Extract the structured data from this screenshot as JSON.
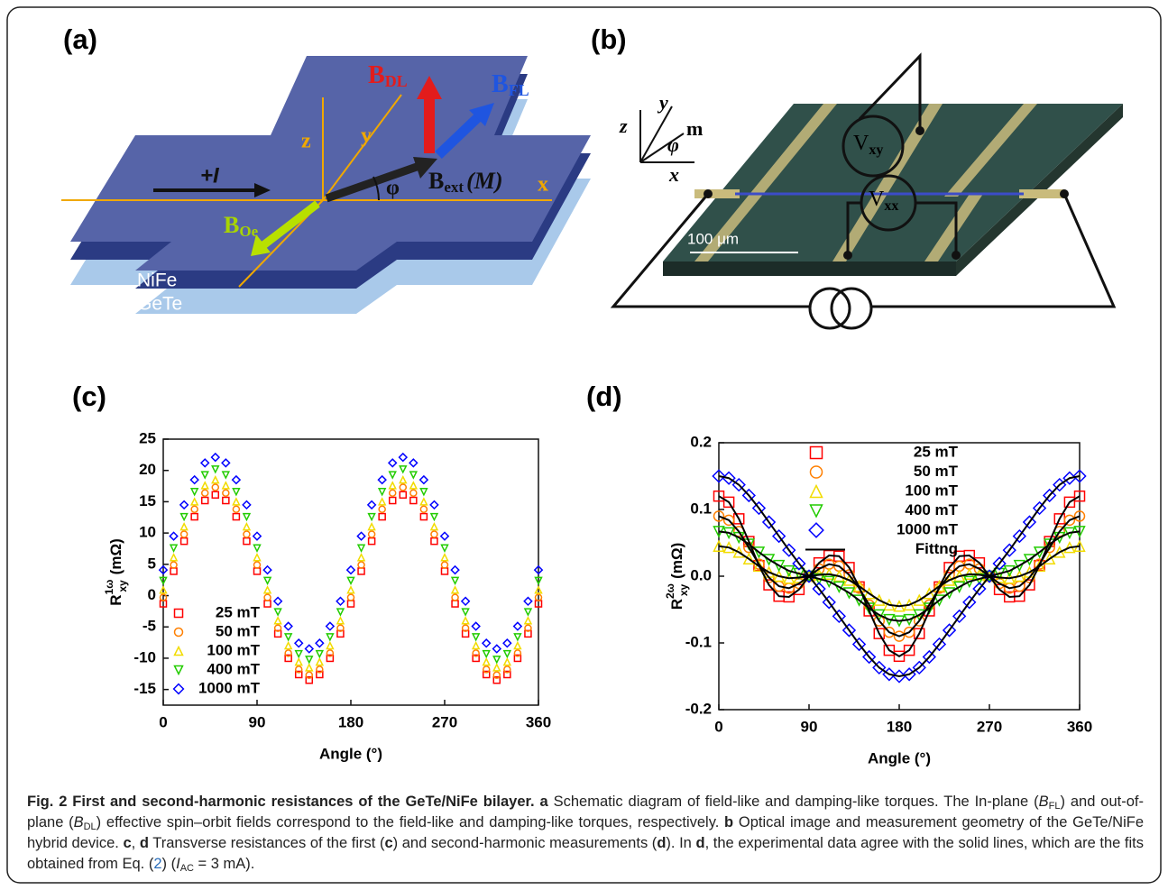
{
  "panels": {
    "a": {
      "label": "(a)",
      "B_DL": {
        "base": "B",
        "sub": "DL"
      },
      "B_FL": {
        "base": "B",
        "sub": "FL"
      },
      "z": "z",
      "y": "y",
      "x": "x",
      "current": "+I",
      "phi": "φ",
      "B_ext": {
        "base": "B",
        "sub": "ext",
        "rest": "(M)"
      },
      "B_Oe": {
        "base": "B",
        "sub": "Oe"
      },
      "layer_top": "NiFe",
      "layer_bottom": "GeTe"
    },
    "b": {
      "label": "(b)",
      "z": "z",
      "y": "y",
      "x": "x",
      "m": "m",
      "phi": "φ",
      "V_xy": {
        "base": "V",
        "sub": "xy"
      },
      "V_xx": {
        "base": "V",
        "sub": "xx"
      },
      "scale_bar": "100 μm"
    }
  },
  "chart_data": [
    {
      "type": "scatter",
      "title": "(c)",
      "xlabel": "Angle (°)",
      "ylabel": {
        "base": "R",
        "sup": "1ω",
        "sub": "xy",
        "unit": "(mΩ)"
      },
      "x": [
        0,
        10,
        20,
        30,
        40,
        50,
        60,
        70,
        80,
        90,
        100,
        110,
        120,
        130,
        140,
        150,
        160,
        170,
        180,
        190,
        200,
        210,
        220,
        230,
        240,
        250,
        260,
        270,
        280,
        290,
        300,
        310,
        320,
        330,
        340,
        350,
        360
      ],
      "xlim": [
        0,
        360
      ],
      "xticks": [
        0,
        90,
        180,
        270,
        360
      ],
      "ylim": [
        -17.5,
        25
      ],
      "yticks": [
        -15,
        -10,
        -5,
        0,
        5,
        10,
        15,
        20,
        25
      ],
      "legend": "lower left",
      "series": [
        {
          "name": "25 mT",
          "color": "#ff0000",
          "marker": "square",
          "values": [
            -1.3,
            3.9,
            8.7,
            12.6,
            15.2,
            16.1,
            15.2,
            12.6,
            8.7,
            3.9,
            -1.3,
            -6.1,
            -10,
            -12.6,
            -13.5,
            -12.6,
            -10,
            -6.1,
            -1.3,
            3.9,
            8.7,
            12.6,
            15.2,
            16.1,
            15.2,
            12.6,
            8.7,
            3.9,
            -1.3,
            -6.1,
            -10,
            -12.6,
            -13.5,
            -12.6,
            -10,
            -6.1,
            -1.3
          ]
        },
        {
          "name": "50 mT",
          "color": "#ff7f00",
          "marker": "circle",
          "values": [
            -0.3,
            4.9,
            9.8,
            13.8,
            16.4,
            17.3,
            16.4,
            13.8,
            9.8,
            4.9,
            -0.3,
            -5.2,
            -9.2,
            -11.8,
            -12.7,
            -11.8,
            -9.2,
            -5.2,
            -0.3,
            4.9,
            9.8,
            13.8,
            16.4,
            17.3,
            16.4,
            13.8,
            9.8,
            4.9,
            -0.3,
            -5.2,
            -9.2,
            -11.8,
            -12.7,
            -11.8,
            -9.2,
            -5.2,
            -0.3
          ]
        },
        {
          "name": "100 mT",
          "color": "#f2dc00",
          "marker": "triangle-up",
          "values": [
            0.9,
            6.1,
            11,
            15,
            17.6,
            18.5,
            17.6,
            15,
            11,
            6.1,
            0.9,
            -4,
            -8,
            -10.6,
            -11.5,
            -10.6,
            -8,
            -4,
            0.9,
            6.1,
            11,
            15,
            17.6,
            18.5,
            17.6,
            15,
            11,
            6.1,
            0.9,
            -4,
            -8,
            -10.6,
            -11.5,
            -10.6,
            -8,
            -4,
            0.9
          ]
        },
        {
          "name": "400 mT",
          "color": "#22cc00",
          "marker": "triangle-down",
          "values": [
            2.4,
            7.6,
            12.6,
            16.6,
            19.3,
            20.2,
            19.3,
            16.6,
            12.6,
            7.6,
            2.4,
            -2.6,
            -6.6,
            -9.3,
            -10.2,
            -9.3,
            -6.6,
            -2.6,
            2.4,
            7.6,
            12.6,
            16.6,
            19.3,
            20.2,
            19.3,
            16.6,
            12.6,
            7.6,
            2.4,
            -2.6,
            -6.6,
            -9.3,
            -10.2,
            -9.3,
            -6.6,
            -2.6,
            2.4
          ]
        },
        {
          "name": "1000 mT",
          "color": "#0000ff",
          "marker": "diamond",
          "values": [
            4.1,
            9.5,
            14.5,
            18.5,
            21.2,
            22.1,
            21.2,
            18.5,
            14.5,
            9.5,
            4.1,
            -0.9,
            -4.9,
            -7.6,
            -8.5,
            -7.6,
            -4.9,
            -0.9,
            4.1,
            9.5,
            14.5,
            18.5,
            21.2,
            22.1,
            21.2,
            18.5,
            14.5,
            9.5,
            4.1,
            -0.9,
            -4.9,
            -7.6,
            -8.5,
            -7.6,
            -4.9,
            -0.9,
            4.1
          ]
        }
      ]
    },
    {
      "type": "scatter",
      "title": "(d)",
      "xlabel": "Angle (°)",
      "ylabel": {
        "base": "R",
        "sup": "2ω",
        "sub": "xy",
        "unit": "(mΩ)"
      },
      "x": [
        0,
        10,
        20,
        30,
        40,
        50,
        60,
        70,
        80,
        90,
        100,
        110,
        120,
        130,
        140,
        150,
        160,
        170,
        180,
        190,
        200,
        210,
        220,
        230,
        240,
        250,
        260,
        270,
        280,
        290,
        300,
        310,
        320,
        330,
        340,
        350,
        360
      ],
      "xlim": [
        0,
        360
      ],
      "xticks": [
        0,
        90,
        180,
        270,
        360
      ],
      "ylim": [
        -0.2,
        0.2
      ],
      "yticks": [
        -0.2,
        -0.1,
        {
          "value": 0,
          "label": "0.0"
        },
        0.1,
        0.2
      ],
      "legend": "upper left",
      "fit_name": "Fittng",
      "fit_color": "#000000",
      "series": [
        {
          "name": "25 mT",
          "color": "#ff0000",
          "marker": "square",
          "values": [
            0.12,
            0.111,
            0.086,
            0.052,
            0.016,
            -0.013,
            -0.03,
            -0.031,
            -0.02,
            0,
            0.02,
            0.031,
            0.03,
            0.013,
            -0.016,
            -0.052,
            -0.086,
            -0.111,
            -0.12,
            -0.111,
            -0.086,
            -0.052,
            -0.016,
            0.013,
            0.03,
            0.031,
            0.02,
            0,
            -0.02,
            -0.031,
            -0.03,
            -0.013,
            0.016,
            0.052,
            0.086,
            0.111,
            0.12
          ]
        },
        {
          "name": "50 mT",
          "color": "#ff7f00",
          "marker": "circle",
          "values": [
            0.09,
            0.084,
            0.067,
            0.043,
            0.018,
            -0.002,
            -0.015,
            -0.018,
            -0.011,
            0,
            0.011,
            0.018,
            0.015,
            0.002,
            -0.018,
            -0.043,
            -0.067,
            -0.084,
            -0.09,
            -0.084,
            -0.067,
            -0.043,
            -0.018,
            0.002,
            0.015,
            0.018,
            0.011,
            0,
            -0.011,
            -0.018,
            -0.015,
            -0.002,
            0.018,
            0.043,
            0.067,
            0.084,
            0.09
          ]
        },
        {
          "name": "100 mT",
          "color": "#f2dc00",
          "marker": "triangle-up",
          "values": [
            0.045,
            0.043,
            0.036,
            0.026,
            0.015,
            0.006,
            0,
            -0.003,
            -0.002,
            0,
            0.002,
            0.003,
            0,
            -0.006,
            -0.015,
            -0.026,
            -0.036,
            -0.043,
            -0.045,
            -0.043,
            -0.036,
            -0.026,
            -0.015,
            -0.006,
            0,
            0.003,
            0.002,
            0,
            -0.002,
            -0.003,
            0,
            0.006,
            0.015,
            0.026,
            0.036,
            0.043,
            0.045
          ]
        },
        {
          "name": "400 mT",
          "color": "#22cc00",
          "marker": "triangle-down",
          "values": [
            0.067,
            0.065,
            0.058,
            0.048,
            0.036,
            0.025,
            0.016,
            0.008,
            0.004,
            0,
            -0.004,
            -0.008,
            -0.016,
            -0.025,
            -0.036,
            -0.048,
            -0.058,
            -0.065,
            -0.067,
            -0.065,
            -0.058,
            -0.048,
            -0.036,
            -0.025,
            -0.016,
            -0.008,
            -0.004,
            0,
            0.004,
            0.008,
            0.016,
            0.025,
            0.036,
            0.048,
            0.058,
            0.065,
            0.067
          ]
        },
        {
          "name": "1000 mT",
          "color": "#0000ff",
          "marker": "diamond",
          "values": [
            0.15,
            0.147,
            0.137,
            0.121,
            0.102,
            0.081,
            0.06,
            0.039,
            0.019,
            0,
            -0.019,
            -0.039,
            -0.06,
            -0.081,
            -0.102,
            -0.121,
            -0.137,
            -0.147,
            -0.15,
            -0.147,
            -0.137,
            -0.121,
            -0.102,
            -0.081,
            -0.06,
            -0.039,
            -0.019,
            0,
            0.019,
            0.039,
            0.06,
            0.081,
            0.102,
            0.121,
            0.137,
            0.147,
            0.15
          ]
        }
      ]
    }
  ],
  "caption": {
    "title": "Fig. 2 First and second-harmonic resistances of the GeTe/NiFe bilayer.",
    "body": [
      "a",
      " Schematic diagram of field-like and damping-like torques. The In-plane (",
      "B",
      "FL",
      ") and out-of-plane (",
      "B",
      "DL",
      ") effective spin–orbit fields correspond to the field-like and damping-like torques, respectively. ",
      "b",
      " Optical image and measurement geometry of the GeTe/NiFe hybrid device. ",
      "c",
      ", ",
      "d",
      " Transverse resistances of the first (",
      "c",
      ") and second-harmonic measurements (",
      "d",
      "). In ",
      "d",
      ", the experimental data agree with the solid lines, which are the fits obtained from Eq. (",
      "2",
      ") (",
      "I",
      "AC",
      " = 3 mA)."
    ]
  }
}
